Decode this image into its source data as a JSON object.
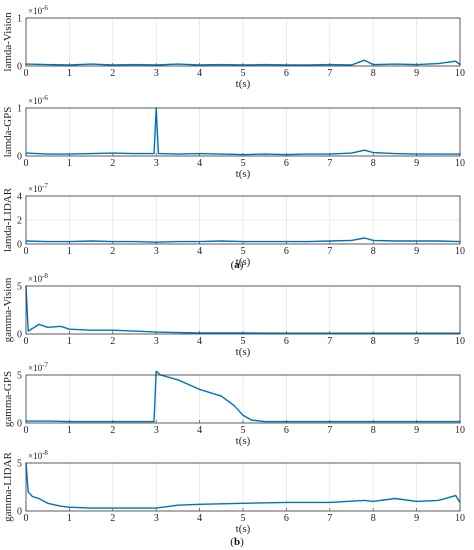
{
  "groups": [
    {
      "caption_prefix": "(",
      "caption_letter": "a",
      "caption_suffix": ")"
    },
    {
      "caption_prefix": "(",
      "caption_letter": "b",
      "caption_suffix": ")"
    }
  ],
  "chart_data": [
    {
      "type": "line",
      "ylabel": "lamda-Vision",
      "xlabel": "t(s)",
      "exponent_base": "×10",
      "exponent_power": "-6",
      "xlim": [
        0,
        10
      ],
      "ylim": [
        0,
        1
      ],
      "yticks": [
        "0",
        "1"
      ],
      "xticks": [
        "0",
        "1",
        "2",
        "3",
        "4",
        "5",
        "6",
        "7",
        "8",
        "9",
        "10"
      ],
      "grid": true,
      "color": "#0072BD",
      "series": [
        {
          "x": [
            0,
            0.5,
            1,
            1.5,
            2,
            2.5,
            3,
            3.5,
            4,
            4.5,
            5,
            5.5,
            6,
            6.5,
            7,
            7.5,
            7.8,
            8,
            8.5,
            9,
            9.5,
            9.9,
            10
          ],
          "y": [
            0.04,
            0.03,
            0.02,
            0.04,
            0.02,
            0.03,
            0.02,
            0.04,
            0.02,
            0.03,
            0.02,
            0.03,
            0.02,
            0.02,
            0.03,
            0.02,
            0.12,
            0.03,
            0.04,
            0.03,
            0.05,
            0.1,
            0.03
          ]
        }
      ]
    },
    {
      "type": "line",
      "ylabel": "lamda-GPS",
      "xlabel": "t(s)",
      "exponent_base": "×10",
      "exponent_power": "-6",
      "xlim": [
        0,
        10
      ],
      "ylim": [
        0,
        1
      ],
      "yticks": [
        "0",
        "1"
      ],
      "xticks": [
        "0",
        "1",
        "2",
        "3",
        "4",
        "5",
        "6",
        "7",
        "8",
        "9",
        "10"
      ],
      "grid": true,
      "color": "#0072BD",
      "series": [
        {
          "x": [
            0,
            0.5,
            1,
            1.5,
            2,
            2.5,
            2.95,
            3.0,
            3.05,
            3.5,
            4,
            4.5,
            5,
            5.5,
            6,
            6.5,
            7,
            7.5,
            7.8,
            8,
            8.5,
            9,
            9.5,
            10
          ],
          "y": [
            0.06,
            0.04,
            0.04,
            0.05,
            0.06,
            0.05,
            0.05,
            1.0,
            0.05,
            0.04,
            0.05,
            0.04,
            0.03,
            0.04,
            0.03,
            0.04,
            0.04,
            0.06,
            0.12,
            0.07,
            0.05,
            0.04,
            0.04,
            0.04
          ]
        }
      ]
    },
    {
      "type": "line",
      "ylabel": "lamda-LIDAR",
      "xlabel": "t(s)",
      "exponent_base": "×10",
      "exponent_power": "-7",
      "xlim": [
        0,
        10
      ],
      "ylim": [
        0,
        4
      ],
      "yticks": [
        "0",
        "2",
        "4"
      ],
      "xticks": [
        "0",
        "1",
        "2",
        "3",
        "4",
        "5",
        "6",
        "7",
        "8",
        "9",
        "10"
      ],
      "grid": true,
      "color": "#0072BD",
      "series": [
        {
          "x": [
            0,
            0.5,
            1,
            1.5,
            2,
            2.5,
            3,
            3.5,
            4,
            4.5,
            5,
            5.5,
            6,
            6.5,
            7,
            7.5,
            7.8,
            8,
            8.5,
            9,
            9.5,
            10
          ],
          "y": [
            0.25,
            0.2,
            0.2,
            0.25,
            0.2,
            0.2,
            0.15,
            0.2,
            0.2,
            0.25,
            0.2,
            0.2,
            0.2,
            0.2,
            0.25,
            0.3,
            0.5,
            0.3,
            0.25,
            0.25,
            0.25,
            0.2
          ]
        }
      ]
    },
    {
      "type": "line",
      "ylabel": "gamma-Vision",
      "xlabel": "t(s)",
      "exponent_base": "×10",
      "exponent_power": "-8",
      "xlim": [
        0,
        10
      ],
      "ylim": [
        0,
        5
      ],
      "yticks": [
        "0",
        "5"
      ],
      "xticks": [
        "0",
        "1",
        "2",
        "3",
        "4",
        "5",
        "6",
        "7",
        "8",
        "9",
        "10"
      ],
      "grid": true,
      "color": "#0072BD",
      "series": [
        {
          "x": [
            0,
            0.05,
            0.3,
            0.5,
            0.8,
            1,
            1.5,
            2,
            2.5,
            3,
            3.5,
            4,
            5,
            6,
            7,
            8,
            9,
            10
          ],
          "y": [
            5,
            0.3,
            1.0,
            0.7,
            0.8,
            0.5,
            0.4,
            0.4,
            0.3,
            0.2,
            0.15,
            0.1,
            0.1,
            0.08,
            0.08,
            0.08,
            0.08,
            0.08
          ]
        }
      ]
    },
    {
      "type": "line",
      "ylabel": "gamma-GPS",
      "xlabel": "t(s)",
      "exponent_base": "×10",
      "exponent_power": "-7",
      "xlim": [
        0,
        10
      ],
      "ylim": [
        0,
        5
      ],
      "yticks": [
        "0",
        "5"
      ],
      "xticks": [
        "0",
        "1",
        "2",
        "3",
        "4",
        "5",
        "6",
        "7",
        "8",
        "9",
        "10"
      ],
      "grid": true,
      "color": "#0072BD",
      "series": [
        {
          "x": [
            0,
            0.5,
            1,
            1.5,
            2,
            2.5,
            2.95,
            3.0,
            3.1,
            3.5,
            4,
            4.5,
            4.8,
            5.0,
            5.2,
            5.5,
            6,
            7,
            8,
            9,
            10
          ],
          "y": [
            0.2,
            0.2,
            0.15,
            0.15,
            0.15,
            0.15,
            0.15,
            5.4,
            5.0,
            4.5,
            3.5,
            2.8,
            1.8,
            0.8,
            0.3,
            0.15,
            0.15,
            0.15,
            0.15,
            0.15,
            0.15
          ]
        }
      ]
    },
    {
      "type": "line",
      "ylabel": "gamma-LIDAR",
      "xlabel": "t(s)",
      "exponent_base": "×10",
      "exponent_power": "-8",
      "xlim": [
        0,
        10
      ],
      "ylim": [
        0,
        5
      ],
      "yticks": [
        "0",
        "5"
      ],
      "xticks": [
        "0",
        "1",
        "2",
        "3",
        "4",
        "5",
        "6",
        "7",
        "8",
        "9",
        "10"
      ],
      "grid": true,
      "color": "#0072BD",
      "series": [
        {
          "x": [
            0,
            0.05,
            0.15,
            0.3,
            0.5,
            0.8,
            1,
            1.5,
            2,
            2.5,
            3,
            3.5,
            4,
            5,
            6,
            7,
            7.8,
            8,
            8.5,
            9,
            9.5,
            9.9,
            10
          ],
          "y": [
            5,
            2.0,
            1.5,
            1.3,
            0.8,
            0.5,
            0.4,
            0.3,
            0.3,
            0.3,
            0.3,
            0.6,
            0.7,
            0.8,
            0.9,
            0.9,
            1.1,
            1.0,
            1.3,
            1.0,
            1.1,
            1.6,
            0.9
          ]
        }
      ]
    }
  ]
}
